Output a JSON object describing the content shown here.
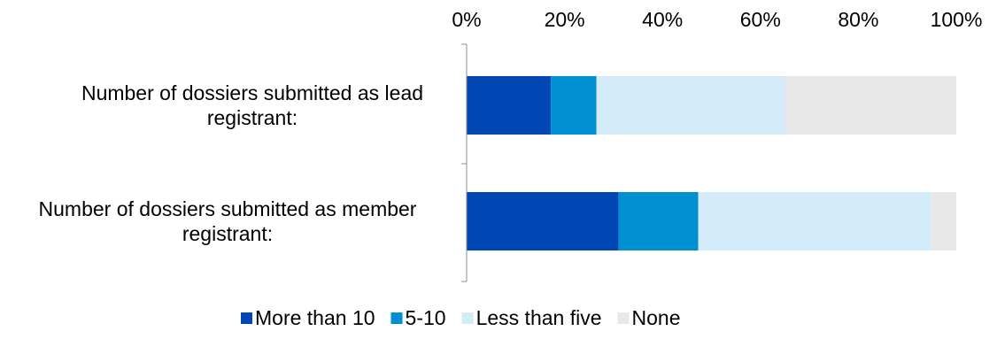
{
  "chart_data": {
    "type": "bar",
    "orientation": "horizontal",
    "stacked": "percent",
    "title": "",
    "xlabel": "",
    "ylabel": "",
    "xlim": [
      0,
      100
    ],
    "x_ticks": [
      "0%",
      "20%",
      "40%",
      "60%",
      "80%",
      "100%"
    ],
    "x_axis_position": "top",
    "grid": false,
    "legend_position": "bottom",
    "categories": [
      [
        "Number of dossiers submitted as lead",
        "registrant:"
      ],
      [
        "Number of dossiers submitted as member",
        "registrant:"
      ]
    ],
    "series": [
      {
        "name": "More than 10",
        "color": "#0047b3",
        "values": [
          17.2,
          31.0
        ]
      },
      {
        "name": "5-10",
        "color": "#008fd0",
        "values": [
          9.3,
          16.3
        ]
      },
      {
        "name": "Less than five",
        "color": "#d4ecfa",
        "values": [
          38.6,
          47.6
        ]
      },
      {
        "name": "None",
        "color": "#e8e8e8",
        "values": [
          34.9,
          5.1
        ]
      }
    ]
  }
}
